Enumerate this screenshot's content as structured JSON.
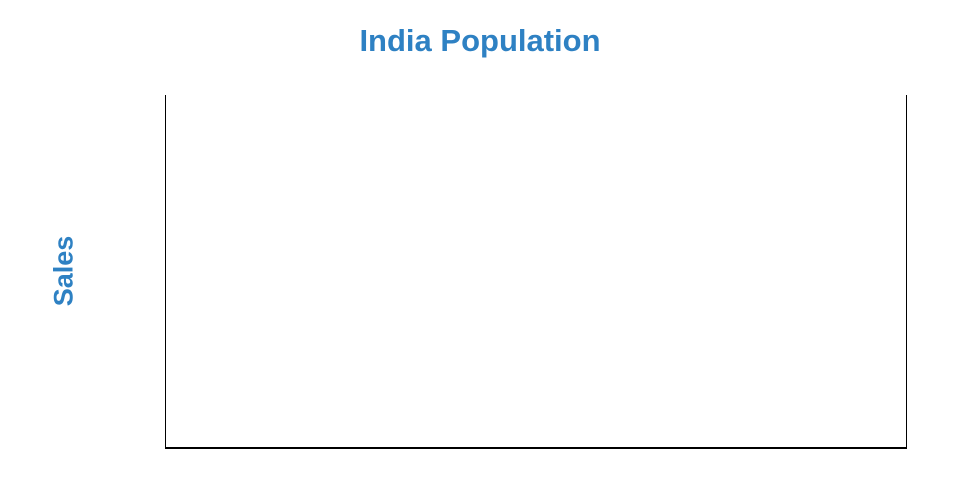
{
  "chart": {
    "title": "India Population",
    "y_axis_title": "Sales",
    "title_color": "#2e81c3",
    "axis_line_color": "#000000",
    "background_color": "#ffffff"
  },
  "chart_data": {
    "type": "line",
    "title": "India Population",
    "xlabel": "",
    "ylabel": "Sales",
    "x": [],
    "series": [],
    "xlim": null,
    "ylim": null,
    "grid": false,
    "legend": false,
    "notes": "Plot area is empty: no data points, no tick marks, no tick labels, no gridlines, no legend. Axes are drawn as black border lines on the left, right and bottom edges only (no top border)."
  }
}
